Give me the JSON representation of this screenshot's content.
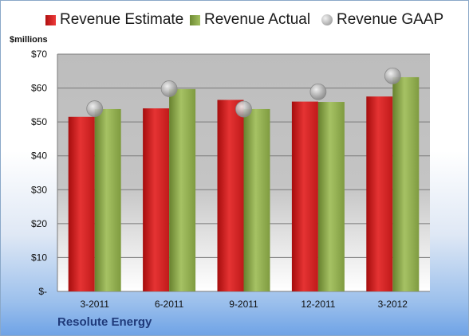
{
  "chart_data": {
    "type": "bar",
    "categories": [
      "3-2011",
      "6-2011",
      "9-2011",
      "12-2011",
      "3-2012"
    ],
    "series": [
      {
        "name": "Revenue Estimate",
        "values": [
          51.5,
          54.0,
          56.5,
          56.0,
          57.5
        ],
        "color": "#d21f1f"
      },
      {
        "name": "Revenue Actual",
        "values": [
          53.8,
          59.7,
          53.8,
          55.9,
          63.2
        ],
        "color": "#8fac4e"
      },
      {
        "name": "Revenue GAAP",
        "values": [
          53.9,
          59.8,
          53.8,
          58.9,
          63.6
        ],
        "color": "#b0b0b0",
        "marker": "circle"
      }
    ],
    "ylabel": "$millions",
    "yticks": [
      "$-",
      "$10",
      "$20",
      "$30",
      "$40",
      "$50",
      "$60",
      "$70"
    ],
    "ylim": [
      0,
      70
    ],
    "grid": true,
    "legend": "top",
    "footer": "Resolute Energy"
  }
}
